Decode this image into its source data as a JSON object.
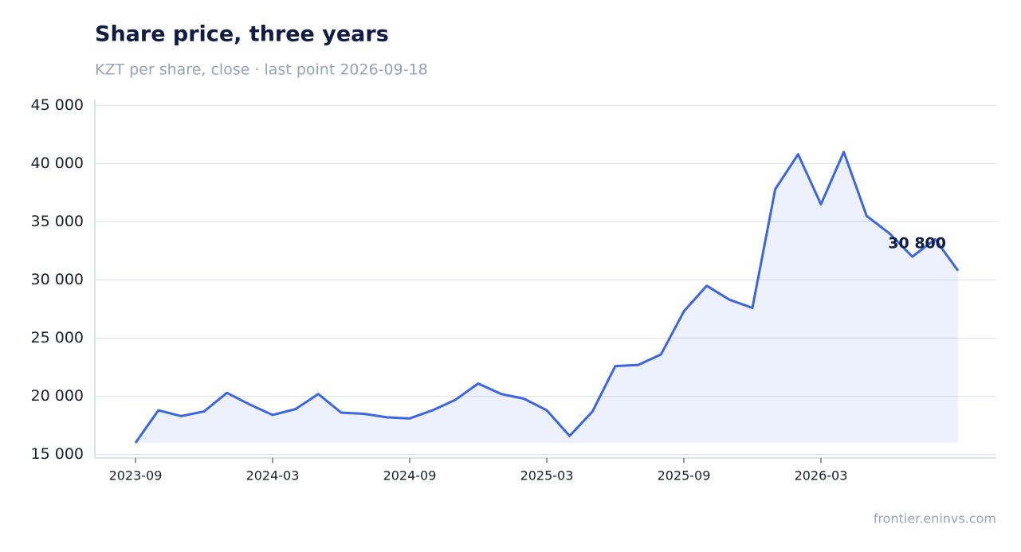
{
  "chart_data": {
    "type": "line",
    "title": "Share price, three years",
    "subtitle": "KZT per share, close · last point 2026-09-18",
    "source": "frontier.eninvs.com",
    "x": [
      "2023-09",
      "2023-10",
      "2023-11",
      "2023-12",
      "2024-01",
      "2024-02",
      "2024-03",
      "2024-04",
      "2024-05",
      "2024-06",
      "2024-07",
      "2024-08",
      "2024-09",
      "2024-10",
      "2024-11",
      "2024-12",
      "2025-01",
      "2025-02",
      "2025-03",
      "2025-04",
      "2025-05",
      "2025-06",
      "2025-07",
      "2025-08",
      "2025-09",
      "2025-10",
      "2025-11",
      "2025-12",
      "2026-01",
      "2026-02",
      "2026-03",
      "2026-04",
      "2026-05",
      "2026-06",
      "2026-07",
      "2026-08",
      "2026-09"
    ],
    "series": [
      {
        "name": "Share price",
        "color": "#3a66e6",
        "values": [
          16000,
          18800,
          18300,
          18700,
          20300,
          19300,
          18400,
          18900,
          20200,
          18600,
          18500,
          18200,
          18100,
          18800,
          19700,
          21100,
          20200,
          19800,
          18800,
          16600,
          18700,
          22600,
          22700,
          23600,
          27300,
          29500,
          28300,
          27600,
          37800,
          40800,
          36500,
          41000,
          35500,
          34000,
          32000,
          33500,
          30800
        ],
        "value_labels": [
          null,
          null,
          null,
          null,
          null,
          null,
          null,
          null,
          null,
          null,
          null,
          null,
          null,
          null,
          null,
          null,
          null,
          null,
          null,
          null,
          null,
          null,
          null,
          null,
          null,
          null,
          null,
          null,
          null,
          null,
          null,
          null,
          null,
          null,
          null,
          null,
          "30 800"
        ]
      }
    ],
    "ylim": [
      14700,
      45500
    ],
    "yticks": [
      {
        "value": 15000,
        "label": "15 000"
      },
      {
        "value": 20000,
        "label": "20 000"
      },
      {
        "value": 25000,
        "label": "25 000"
      },
      {
        "value": 30000,
        "label": "30 000"
      },
      {
        "value": 35000,
        "label": "35 000"
      },
      {
        "value": 40000,
        "label": "40 000"
      },
      {
        "value": 45000,
        "label": "45 000"
      }
    ],
    "xticks": [
      "2023-09",
      "2024-03",
      "2024-09",
      "2025-03",
      "2025-09",
      "2026-03"
    ],
    "grid": true
  }
}
